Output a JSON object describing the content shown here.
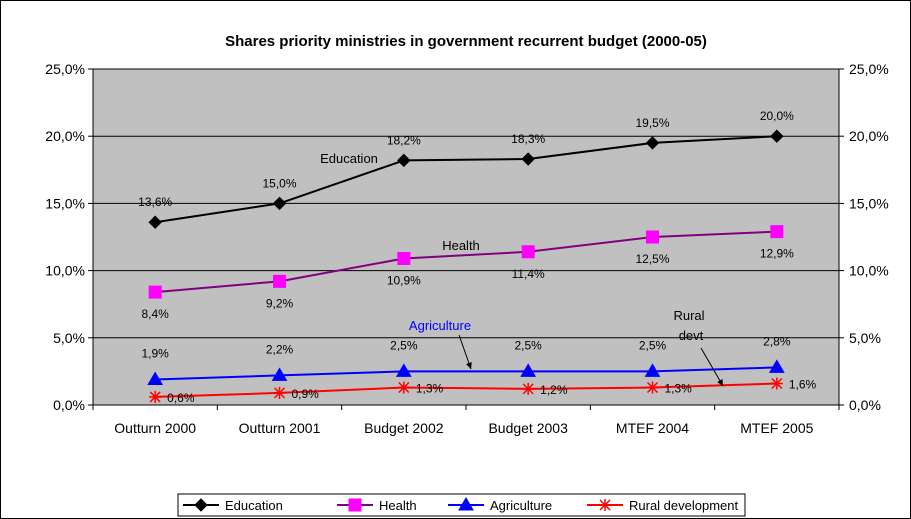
{
  "chart_data": {
    "type": "line",
    "title": "Shares priority ministries in government recurrent budget (2000-05)",
    "categories": [
      "Outturn 2000",
      "Outturn 2001",
      "Budget 2002",
      "Budget 2003",
      "MTEF 2004",
      "MTEF 2005"
    ],
    "ylim": [
      0,
      25
    ],
    "yticks": [
      0,
      5,
      10,
      15,
      20,
      25
    ],
    "ytick_labels": [
      "0,0%",
      "5,0%",
      "10,0%",
      "15,0%",
      "20,0%",
      "25,0%"
    ],
    "grid": true,
    "plot_background": "#c0c0c0",
    "legend_position": "bottom",
    "series": [
      {
        "name": "Education",
        "values": [
          13.6,
          15.0,
          18.2,
          18.3,
          19.5,
          20.0
        ],
        "labels": [
          "13,6%",
          "15,0%",
          "18,2%",
          "18,3%",
          "19,5%",
          "20,0%"
        ],
        "color": "#000000",
        "marker": "diamond"
      },
      {
        "name": "Health",
        "values": [
          8.4,
          9.2,
          10.9,
          11.4,
          12.5,
          12.9
        ],
        "labels": [
          "8,4%",
          "9,2%",
          "10,9%",
          "11,4%",
          "12,5%",
          "12,9%"
        ],
        "color": "#800080",
        "marker_color": "#ff00ff",
        "marker": "square"
      },
      {
        "name": "Agriculture",
        "values": [
          1.9,
          2.2,
          2.5,
          2.5,
          2.5,
          2.8
        ],
        "labels": [
          "1,9%",
          "2,2%",
          "2,5%",
          "2,5%",
          "2,5%",
          "2,8%"
        ],
        "color": "#0000ff",
        "marker": "triangle"
      },
      {
        "name": "Rural development",
        "values": [
          0.6,
          0.9,
          1.3,
          1.2,
          1.3,
          1.6
        ],
        "labels": [
          "0,6%",
          "0,9%",
          "1,3%",
          "1,2%",
          "1,3%",
          "1,6%"
        ],
        "color": "#ff0000",
        "marker": "star"
      }
    ],
    "annotations": [
      {
        "text": "Education",
        "color": "#000000"
      },
      {
        "text": "Health",
        "color": "#000000"
      },
      {
        "text": "Agriculture",
        "color": "#0000ff"
      },
      {
        "text": "Rural",
        "color": "#000000"
      },
      {
        "text": "devt",
        "color": "#000000"
      }
    ]
  }
}
